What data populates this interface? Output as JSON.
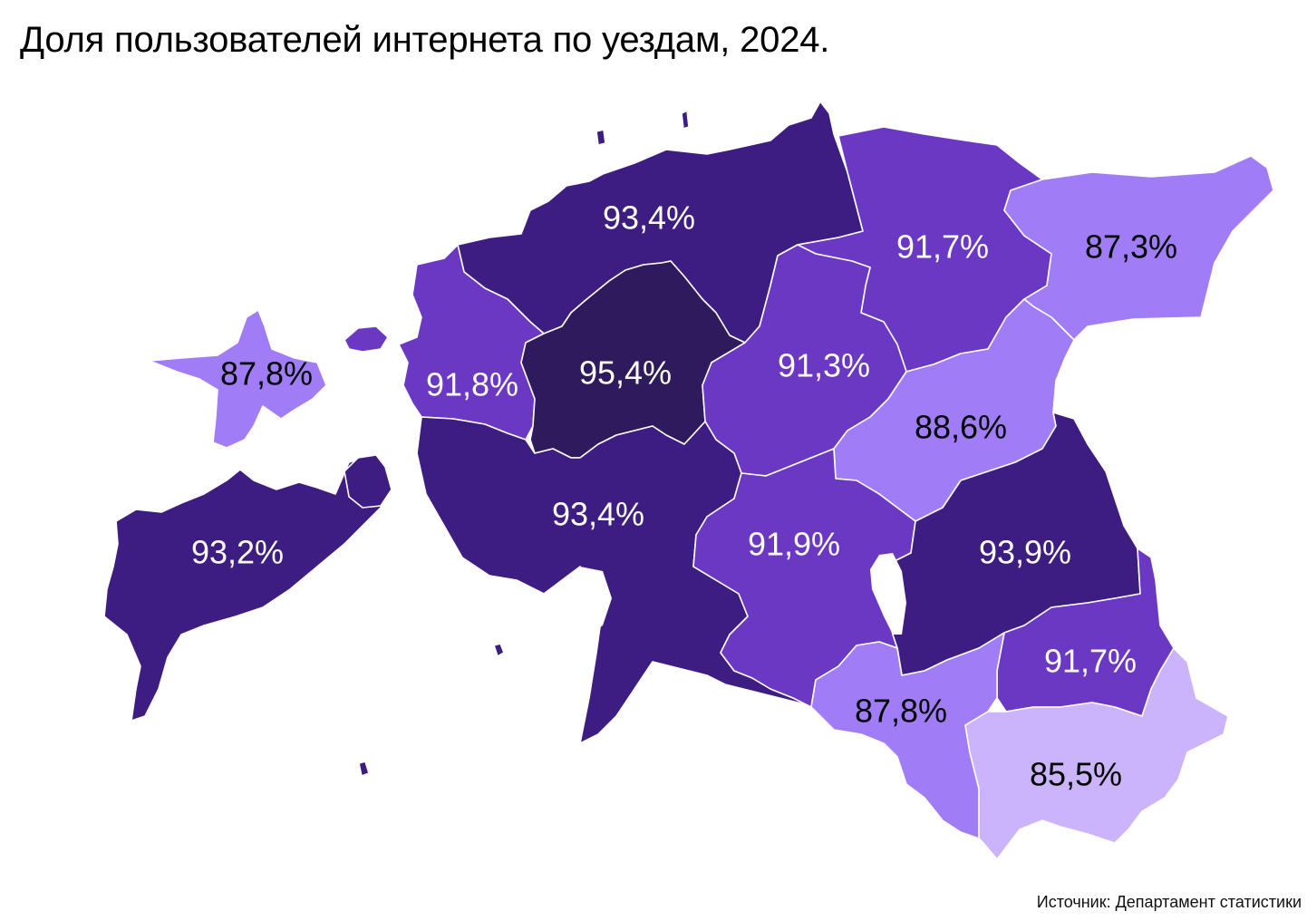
{
  "title": "Доля пользователей интернета по уездам, 2024.",
  "source": "Источник: Департамент статистики",
  "colors": {
    "darkest": "#2e1a5c",
    "dark": "#3e1d82",
    "medium": "#6b38c4",
    "light": "#a07cf7",
    "lightest": "#cbb4fb",
    "label_on_dark": "#ffffff",
    "label_on_light": "#000000"
  },
  "chart_data": {
    "type": "map",
    "values": [
      {
        "value": "93,4%",
        "shade": "dark"
      },
      {
        "value": "91,7%",
        "shade": "medium"
      },
      {
        "value": "87,3%",
        "shade": "light"
      },
      {
        "value": "87,8%",
        "shade": "light"
      },
      {
        "value": "91,8%",
        "shade": "medium"
      },
      {
        "value": "95,4%",
        "shade": "darkest"
      },
      {
        "value": "91,3%",
        "shade": "medium"
      },
      {
        "value": "88,6%",
        "shade": "light"
      },
      {
        "value": "93,2%",
        "shade": "dark"
      },
      {
        "value": "93,4%",
        "shade": "dark"
      },
      {
        "value": "91,9%",
        "shade": "medium"
      },
      {
        "value": "93,9%",
        "shade": "dark"
      },
      {
        "value": "91,7%",
        "shade": "medium"
      },
      {
        "value": "87,8%",
        "shade": "light"
      },
      {
        "value": "85,5%",
        "shade": "lightest"
      }
    ]
  }
}
